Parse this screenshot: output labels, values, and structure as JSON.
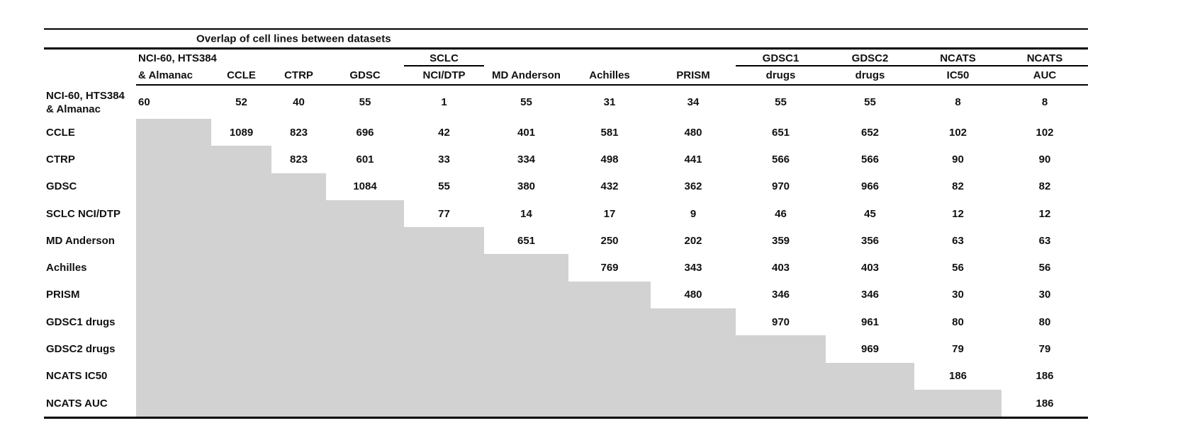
{
  "colors": {
    "shaded_cell": "#d2d2d2",
    "rule": "#000000",
    "text": "#111111",
    "background": "#ffffff"
  },
  "chart_data": {
    "type": "table",
    "title": "Overlap of cell lines between datasets",
    "column_headers_line1": [
      "NCI-60, HTS384",
      "",
      "",
      "",
      "SCLC",
      "",
      "",
      "",
      "GDSC1",
      "GDSC2",
      "NCATS",
      "NCATS"
    ],
    "column_headers_line2": [
      "& Almanac",
      "CCLE",
      "CTRP",
      "GDSC",
      "NCI/DTP",
      "MD Anderson",
      "Achilles",
      "PRISM",
      "drugs",
      "drugs",
      "IC50",
      "AUC"
    ],
    "column_group_rules": [
      false,
      false,
      false,
      false,
      true,
      false,
      false,
      false,
      true,
      true,
      true,
      true
    ],
    "row_labels": [
      [
        "NCI-60, HTS384",
        "& Almanac"
      ],
      [
        "CCLE"
      ],
      [
        "CTRP"
      ],
      [
        "GDSC"
      ],
      [
        "SCLC NCI/DTP"
      ],
      [
        "MD Anderson"
      ],
      [
        "Achilles"
      ],
      [
        "PRISM"
      ],
      [
        "GDSC1 drugs"
      ],
      [
        "GDSC2 drugs"
      ],
      [
        "NCATS IC50"
      ],
      [
        "NCATS AUC"
      ]
    ],
    "matrix": [
      [
        60,
        52,
        40,
        55,
        1,
        55,
        31,
        34,
        55,
        55,
        8,
        8
      ],
      [
        null,
        1089,
        823,
        696,
        42,
        401,
        581,
        480,
        651,
        652,
        102,
        102
      ],
      [
        null,
        null,
        823,
        601,
        33,
        334,
        498,
        441,
        566,
        566,
        90,
        90
      ],
      [
        null,
        null,
        null,
        1084,
        55,
        380,
        432,
        362,
        970,
        966,
        82,
        82
      ],
      [
        null,
        null,
        null,
        null,
        77,
        14,
        17,
        9,
        46,
        45,
        12,
        12
      ],
      [
        null,
        null,
        null,
        null,
        null,
        651,
        250,
        202,
        359,
        356,
        63,
        63
      ],
      [
        null,
        null,
        null,
        null,
        null,
        null,
        769,
        343,
        403,
        403,
        56,
        56
      ],
      [
        null,
        null,
        null,
        null,
        null,
        null,
        null,
        480,
        346,
        346,
        30,
        30
      ],
      [
        null,
        null,
        null,
        null,
        null,
        null,
        null,
        null,
        970,
        961,
        80,
        80
      ],
      [
        null,
        null,
        null,
        null,
        null,
        null,
        null,
        null,
        null,
        969,
        79,
        79
      ],
      [
        null,
        null,
        null,
        null,
        null,
        null,
        null,
        null,
        null,
        null,
        186,
        186
      ],
      [
        null,
        null,
        null,
        null,
        null,
        null,
        null,
        null,
        null,
        null,
        null,
        186
      ]
    ],
    "lower_triangle_shaded": true,
    "legend_position": "none",
    "grid": false
  }
}
